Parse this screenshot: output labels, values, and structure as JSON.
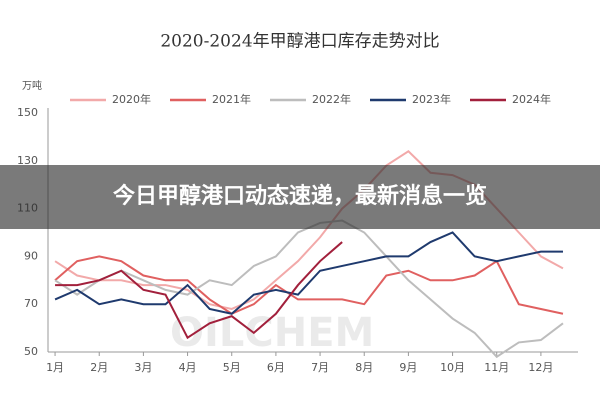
{
  "chart_data": {
    "type": "line",
    "title": "2020-2024年甲醇港口库存走势对比",
    "y_unit": "万吨",
    "banner": "今日甲醇港口动态速递，最新消息一览",
    "watermark": "OILCHEM",
    "x": [
      1,
      1.5,
      2,
      2.5,
      3,
      3.5,
      4,
      4.5,
      5,
      5.5,
      6,
      6.5,
      7,
      7.5,
      8,
      8.5,
      9,
      9.5,
      10,
      10.5,
      11,
      11.5,
      12,
      12.5
    ],
    "xlim": [
      0.84,
      12.84
    ],
    "xticks": [
      {
        "value": 1,
        "label": "1月"
      },
      {
        "value": 2,
        "label": "2月"
      },
      {
        "value": 3,
        "label": "3月"
      },
      {
        "value": 4,
        "label": "4月"
      },
      {
        "value": 5,
        "label": "5月"
      },
      {
        "value": 6,
        "label": "6月"
      },
      {
        "value": 7,
        "label": "7月"
      },
      {
        "value": 8,
        "label": "8月"
      },
      {
        "value": 9,
        "label": "9月"
      },
      {
        "value": 10,
        "label": "10月"
      },
      {
        "value": 11,
        "label": "11月"
      },
      {
        "value": 12,
        "label": "12月"
      }
    ],
    "ylim": [
      50,
      150
    ],
    "yticks": [
      50,
      70,
      90,
      110,
      130,
      150
    ],
    "series": [
      {
        "name": "2020年",
        "color": "#f2a9a9",
        "values": [
          88,
          82,
          80,
          80,
          78,
          78,
          76,
          70,
          68,
          72,
          80,
          88,
          98,
          110,
          118,
          128,
          134,
          125,
          124,
          120,
          110,
          100,
          90,
          85
        ]
      },
      {
        "name": "2021年",
        "color": "#e06060",
        "values": [
          80,
          88,
          90,
          88,
          82,
          80,
          80,
          72,
          66,
          70,
          78,
          72,
          72,
          72,
          70,
          82,
          84,
          80,
          80,
          82,
          88,
          70,
          68,
          66
        ]
      },
      {
        "name": "2022年",
        "color": "#bdbdbd",
        "values": [
          80,
          74,
          80,
          84,
          80,
          76,
          74,
          80,
          78,
          86,
          90,
          100,
          104,
          105,
          100,
          90,
          80,
          72,
          64,
          58,
          48,
          54,
          55,
          62
        ]
      },
      {
        "name": "2023年",
        "color": "#1f3a6e",
        "values": [
          72,
          76,
          70,
          72,
          70,
          70,
          78,
          68,
          66,
          74,
          76,
          74,
          84,
          86,
          88,
          90,
          90,
          96,
          100,
          90,
          88,
          90,
          92,
          92
        ]
      },
      {
        "name": "2024年",
        "color": "#a2203c",
        "values": [
          78,
          78,
          80,
          84,
          76,
          74,
          56,
          62,
          65,
          58,
          66,
          78,
          88,
          96,
          null,
          null,
          null,
          null,
          null,
          null,
          null,
          null,
          null,
          null
        ]
      }
    ]
  }
}
